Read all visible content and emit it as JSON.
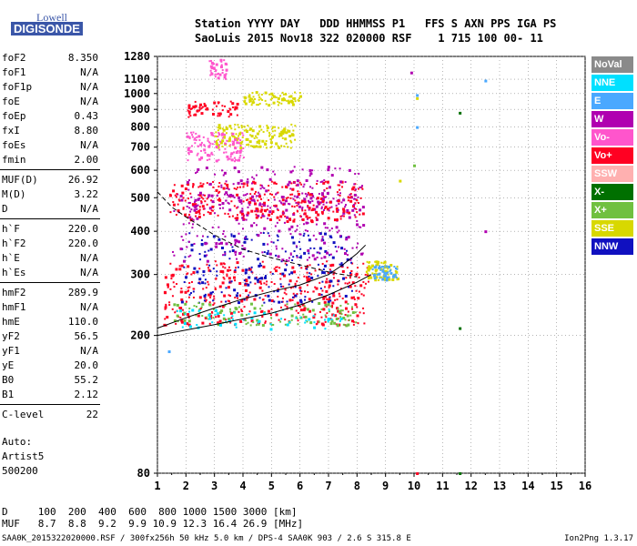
{
  "logo": {
    "line1": "Lowell",
    "line2": "DIGISONDE"
  },
  "header": {
    "row1": "Station YYYY DAY   DDD HHMMSS P1   FFS S AXN PPS IGA PS",
    "row2": "SaoLuis 2015 Nov18 322 020000 RSF    1 715 100 00- 11"
  },
  "params": [
    {
      "name": "foF2",
      "value": "8.350"
    },
    {
      "name": "foF1",
      "value": "N/A"
    },
    {
      "name": "foF1p",
      "value": "N/A"
    },
    {
      "name": "foE",
      "value": "N/A"
    },
    {
      "name": "foEp",
      "value": "0.43"
    },
    {
      "name": "fxI",
      "value": "8.80"
    },
    {
      "name": "foEs",
      "value": "N/A"
    },
    {
      "name": "fmin",
      "value": "2.00"
    },
    {
      "name": "MUF(D)",
      "value": "26.92"
    },
    {
      "name": "M(D)",
      "value": "3.22"
    },
    {
      "name": "D",
      "value": "N/A"
    },
    {
      "name": "h`F",
      "value": "220.0"
    },
    {
      "name": "h`F2",
      "value": "220.0"
    },
    {
      "name": "h`E",
      "value": "N/A"
    },
    {
      "name": "h`Es",
      "value": "N/A"
    },
    {
      "name": "hmF2",
      "value": "289.9"
    },
    {
      "name": "hmF1",
      "value": "N/A"
    },
    {
      "name": "hmE",
      "value": "110.0"
    },
    {
      "name": "yF2",
      "value": "56.5"
    },
    {
      "name": "yF1",
      "value": "N/A"
    },
    {
      "name": "yE",
      "value": "20.0"
    },
    {
      "name": "B0",
      "value": "55.2"
    },
    {
      "name": "B1",
      "value": "2.12"
    },
    {
      "name": "C-level",
      "value": "22"
    }
  ],
  "auto": {
    "line1": "Auto:",
    "line2": "Artist5",
    "line3": "500200"
  },
  "legend": [
    {
      "label": "NoVal",
      "color": "#8a8a8a"
    },
    {
      "label": "NNE",
      "color": "#00e0ff"
    },
    {
      "label": "E",
      "color": "#4aa8ff"
    },
    {
      "label": "W",
      "color": "#b000b0"
    },
    {
      "label": "Vo-",
      "color": "#ff55cc"
    },
    {
      "label": "Vo+",
      "color": "#ff0022"
    },
    {
      "label": "SSW",
      "color": "#ffb0b0"
    },
    {
      "label": "X-",
      "color": "#007000"
    },
    {
      "label": "X+",
      "color": "#70c040"
    },
    {
      "label": "SSE",
      "color": "#d8d800"
    },
    {
      "label": "NNW",
      "color": "#1010c0"
    }
  ],
  "dmuf": {
    "row1": "D     100  200  400  600  800 1000 1500 3000 [km]",
    "row2": "MUF   8.7  8.8  9.2  9.9 10.9 12.3 16.4 26.9 [MHz]"
  },
  "footer": {
    "left": "SAA0K_2015322020000.RSF / 300fx256h 50 kHz 5.0 km / DPS-4 SAA0K 903 / 2.6 S 315.8 E",
    "right": "Ion2Png 1.3.17"
  },
  "chart_data": {
    "type": "scatter",
    "xlim": [
      1,
      16
    ],
    "ylim": [
      80,
      1280
    ],
    "x_ticks": [
      "1",
      "2",
      "3",
      "4",
      "5",
      "6",
      "7",
      "8",
      "9",
      "10",
      "11",
      "12",
      "13",
      "14",
      "15",
      "16"
    ],
    "y_ticks": [
      "80",
      "200",
      "300",
      "400",
      "500",
      "600",
      "700",
      "800",
      "900",
      "1000",
      "1100",
      "1280"
    ],
    "y_scale": "log",
    "grid": true,
    "legend_position": "right",
    "curves": [
      {
        "name": "trace_main",
        "color": "#000000",
        "points": [
          [
            1.0,
            210
          ],
          [
            2,
            225
          ],
          [
            3,
            240
          ],
          [
            4,
            255
          ],
          [
            5,
            268
          ],
          [
            6,
            280
          ],
          [
            7,
            300
          ],
          [
            7.5,
            320
          ],
          [
            8.0,
            345
          ],
          [
            8.3,
            365
          ]
        ]
      },
      {
        "name": "trace_low",
        "color": "#000000",
        "points": [
          [
            1.0,
            200
          ],
          [
            3,
            215
          ],
          [
            5,
            232
          ],
          [
            6,
            245
          ],
          [
            7,
            262
          ],
          [
            8,
            285
          ],
          [
            8.5,
            300
          ]
        ]
      },
      {
        "name": "trace_dashed",
        "color": "#000000",
        "dashed": true,
        "points": [
          [
            1.0,
            520
          ],
          [
            1.5,
            470
          ],
          [
            2,
            440
          ],
          [
            3,
            390
          ],
          [
            4,
            355
          ],
          [
            5,
            335
          ],
          [
            6,
            320
          ],
          [
            7,
            305
          ],
          [
            8,
            295
          ]
        ]
      }
    ],
    "clusters": [
      {
        "name": "o_trace_F",
        "color": "#ff0022",
        "xr": [
          1.2,
          8.4
        ],
        "yr": [
          215,
          330
        ],
        "n": 420
      },
      {
        "name": "x_trace_F",
        "color": "#1010c0",
        "xr": [
          1.8,
          7.8
        ],
        "yr": [
          250,
          400
        ],
        "n": 220
      },
      {
        "name": "spread_mid",
        "color": "#b000b0",
        "xr": [
          1.5,
          8.2
        ],
        "yr": [
          330,
          520
        ],
        "n": 260
      },
      {
        "name": "2nd_hop",
        "color": "#ff0022",
        "xr": [
          1.4,
          8.2
        ],
        "yr": [
          430,
          560
        ],
        "n": 300
      },
      {
        "name": "2nd_hop_W",
        "color": "#b000b0",
        "xr": [
          2.0,
          8.2
        ],
        "yr": [
          460,
          620
        ],
        "n": 160
      },
      {
        "name": "3rd_hop",
        "color": "#d8d800",
        "xr": [
          3.0,
          5.8
        ],
        "yr": [
          700,
          820
        ],
        "n": 160
      },
      {
        "name": "3rd_hop_pink",
        "color": "#ff55cc",
        "xr": [
          2.0,
          4.0
        ],
        "yr": [
          640,
          780
        ],
        "n": 120
      },
      {
        "name": "4th_hop",
        "color": "#d8d800",
        "xr": [
          4.0,
          6.0
        ],
        "yr": [
          930,
          1020
        ],
        "n": 80
      },
      {
        "name": "4th_hop_red",
        "color": "#ff0022",
        "xr": [
          2.0,
          3.8
        ],
        "yr": [
          860,
          960
        ],
        "n": 60
      },
      {
        "name": "top",
        "color": "#ff55cc",
        "xr": [
          2.8,
          3.4
        ],
        "yr": [
          1100,
          1260
        ],
        "n": 40
      },
      {
        "name": "near_foF2",
        "color": "#d8d800",
        "xr": [
          8.3,
          9.4
        ],
        "yr": [
          290,
          330
        ],
        "n": 80
      },
      {
        "name": "near_foF2_blue",
        "color": "#4aa8ff",
        "xr": [
          8.5,
          9.4
        ],
        "yr": [
          290,
          320
        ],
        "n": 50
      },
      {
        "name": "green_low",
        "color": "#70c040",
        "xr": [
          1.5,
          8.0
        ],
        "yr": [
          215,
          250
        ],
        "n": 120
      },
      {
        "name": "cyan_low",
        "color": "#00e0ff",
        "xr": [
          1.5,
          7.5
        ],
        "yr": [
          210,
          240
        ],
        "n": 60
      }
    ],
    "stray_points": [
      {
        "x": 10.1,
        "y": 990,
        "color": "#4aa8ff"
      },
      {
        "x": 10.1,
        "y": 970,
        "color": "#d8d800"
      },
      {
        "x": 10.1,
        "y": 800,
        "color": "#4aa8ff"
      },
      {
        "x": 10.0,
        "y": 620,
        "color": "#70c040"
      },
      {
        "x": 12.5,
        "y": 1090,
        "color": "#4aa8ff"
      },
      {
        "x": 11.6,
        "y": 880,
        "color": "#007000"
      },
      {
        "x": 9.5,
        "y": 560,
        "color": "#d8d800"
      },
      {
        "x": 12.5,
        "y": 400,
        "color": "#b000b0"
      },
      {
        "x": 9.9,
        "y": 1150,
        "color": "#b000b0"
      },
      {
        "x": 11.6,
        "y": 210,
        "color": "#007000"
      },
      {
        "x": 10.1,
        "y": 80,
        "color": "#ff0022"
      },
      {
        "x": 1.4,
        "y": 180,
        "color": "#4aa8ff"
      },
      {
        "x": 11.6,
        "y": 80,
        "color": "#007000"
      }
    ]
  }
}
